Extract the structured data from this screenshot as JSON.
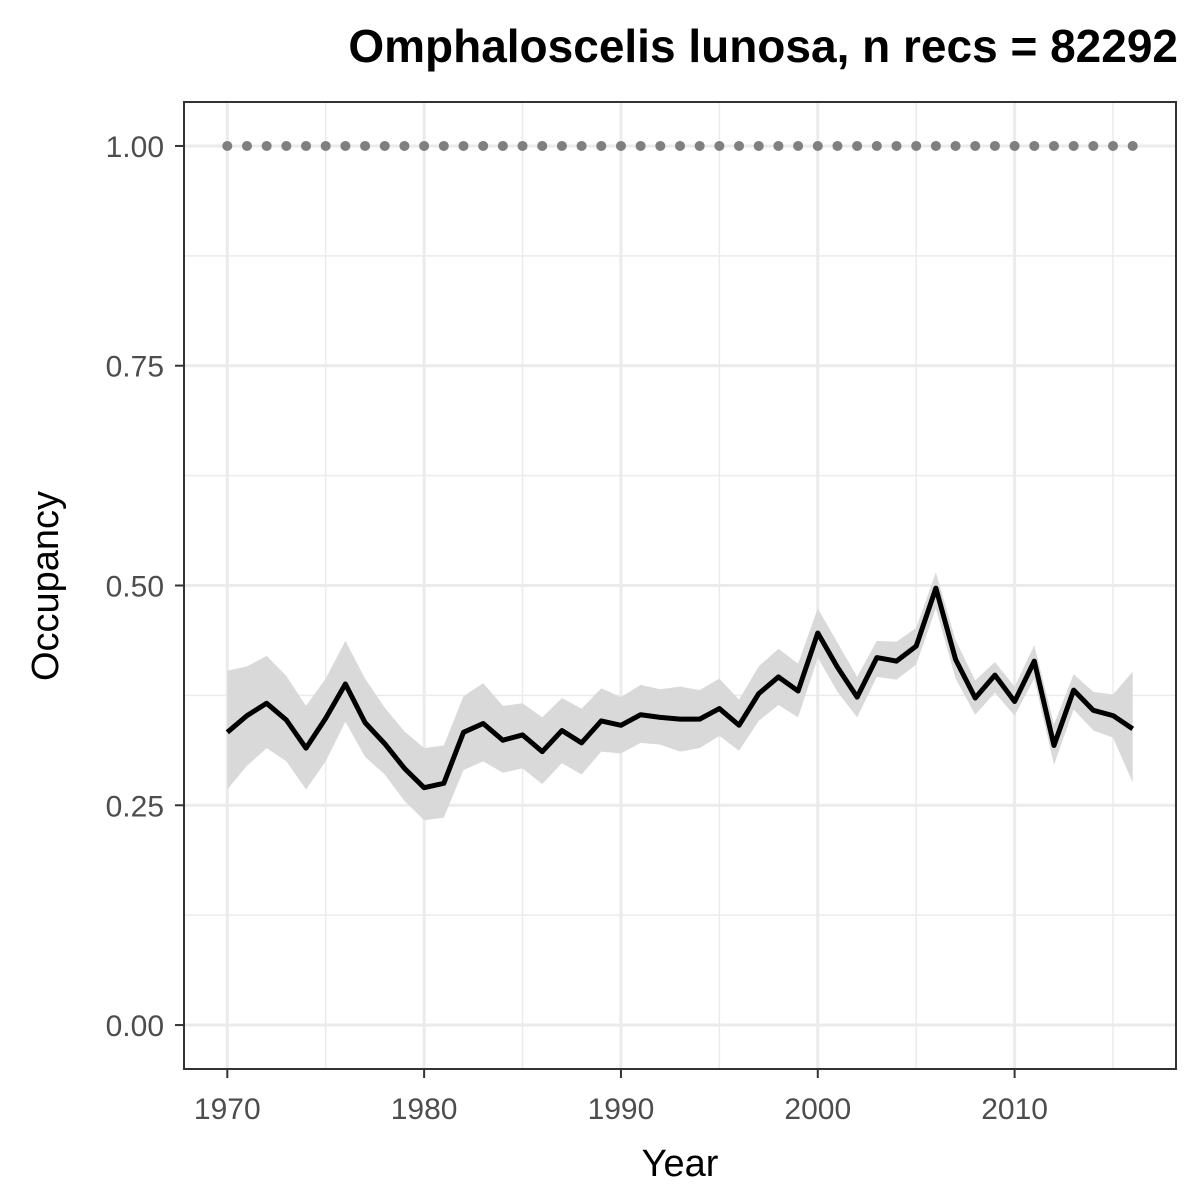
{
  "chart_data": {
    "type": "line",
    "title": "Omphaloscelis lunosa, n recs = 82292",
    "xlabel": "Year",
    "ylabel": "Occupancy",
    "xlim": [
      1967.8,
      2018.2
    ],
    "ylim": [
      -0.05,
      1.05
    ],
    "x_ticks": [
      1970,
      1980,
      1990,
      2000,
      2010
    ],
    "x_tick_labels": [
      "1970",
      "1980",
      "1990",
      "2000",
      "2010"
    ],
    "y_ticks": [
      0,
      0.25,
      0.5,
      0.75,
      1.0
    ],
    "y_tick_labels": [
      "0.00",
      "0.25",
      "0.50",
      "0.75",
      "1.00"
    ],
    "grid": true,
    "colors": {
      "line": "#000000",
      "ribbon": "#d9d9d9",
      "dots": "#7f7f7f",
      "grid": "#ebebeb",
      "border": "#333333"
    },
    "series": [
      {
        "type": "line",
        "x": [
          1970,
          1971,
          1972,
          1973,
          1974,
          1975,
          1976,
          1977,
          1978,
          1979,
          1980,
          1981,
          1982,
          1983,
          1984,
          1985,
          1986,
          1987,
          1988,
          1989,
          1990,
          1991,
          1992,
          1993,
          1994,
          1995,
          1996,
          1997,
          1998,
          1999,
          2000,
          2001,
          2002,
          2003,
          2004,
          2005,
          2006,
          2007,
          2008,
          2009,
          2010,
          2011,
          2012,
          2013,
          2014,
          2015,
          2016
        ],
        "values": [
          0.333,
          0.352,
          0.366,
          0.347,
          0.315,
          0.349,
          0.388,
          0.344,
          0.32,
          0.292,
          0.27,
          0.275,
          0.333,
          0.343,
          0.324,
          0.33,
          0.311,
          0.335,
          0.321,
          0.346,
          0.341,
          0.353,
          0.35,
          0.348,
          0.348,
          0.36,
          0.341,
          0.377,
          0.396,
          0.38,
          0.446,
          0.407,
          0.373,
          0.418,
          0.414,
          0.431,
          0.497,
          0.416,
          0.372,
          0.398,
          0.368,
          0.414,
          0.318,
          0.381,
          0.358,
          0.352,
          0.337
        ],
        "lower": [
          0.268,
          0.295,
          0.315,
          0.3,
          0.268,
          0.3,
          0.345,
          0.305,
          0.285,
          0.255,
          0.233,
          0.236,
          0.29,
          0.3,
          0.287,
          0.292,
          0.274,
          0.298,
          0.285,
          0.311,
          0.309,
          0.321,
          0.319,
          0.311,
          0.315,
          0.329,
          0.312,
          0.346,
          0.364,
          0.35,
          0.418,
          0.379,
          0.35,
          0.396,
          0.393,
          0.41,
          0.474,
          0.394,
          0.353,
          0.378,
          0.352,
          0.394,
          0.296,
          0.359,
          0.335,
          0.327,
          0.276
        ],
        "upper": [
          0.403,
          0.408,
          0.42,
          0.397,
          0.363,
          0.394,
          0.437,
          0.394,
          0.361,
          0.334,
          0.315,
          0.318,
          0.374,
          0.389,
          0.363,
          0.366,
          0.35,
          0.372,
          0.36,
          0.383,
          0.373,
          0.387,
          0.382,
          0.385,
          0.381,
          0.394,
          0.37,
          0.408,
          0.428,
          0.411,
          0.474,
          0.435,
          0.396,
          0.437,
          0.436,
          0.452,
          0.515,
          0.438,
          0.392,
          0.413,
          0.385,
          0.432,
          0.342,
          0.399,
          0.379,
          0.376,
          0.402
        ]
      },
      {
        "type": "points",
        "x": [
          1970,
          1971,
          1972,
          1973,
          1974,
          1975,
          1976,
          1977,
          1978,
          1979,
          1980,
          1981,
          1982,
          1983,
          1984,
          1985,
          1986,
          1987,
          1988,
          1989,
          1990,
          1991,
          1992,
          1993,
          1994,
          1995,
          1996,
          1997,
          1998,
          1999,
          2000,
          2001,
          2002,
          2003,
          2004,
          2005,
          2006,
          2007,
          2008,
          2009,
          2010,
          2011,
          2012,
          2013,
          2014,
          2015,
          2016
        ],
        "values": [
          1,
          1,
          1,
          1,
          1,
          1,
          1,
          1,
          1,
          1,
          1,
          1,
          1,
          1,
          1,
          1,
          1,
          1,
          1,
          1,
          1,
          1,
          1,
          1,
          1,
          1,
          1,
          1,
          1,
          1,
          1,
          1,
          1,
          1,
          1,
          1,
          1,
          1,
          1,
          1,
          1,
          1,
          1,
          1,
          1,
          1,
          1
        ]
      }
    ]
  }
}
